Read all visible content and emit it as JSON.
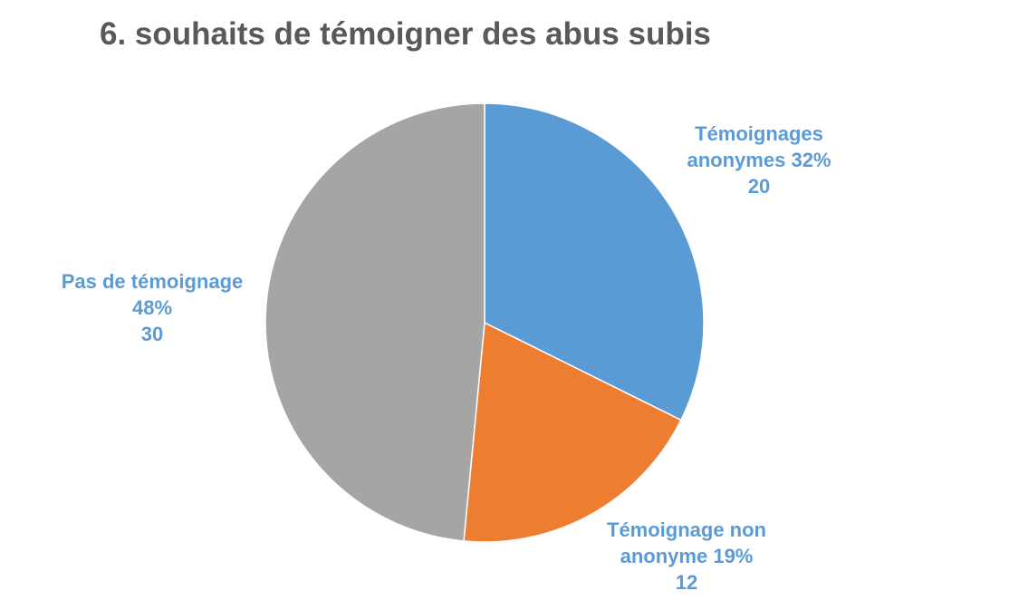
{
  "chart_data": {
    "type": "pie",
    "title": "6. souhaits de témoigner des abus subis",
    "categories": [
      "Témoignages anonymes",
      "Témoignage non anonyme",
      "Pas de témoignage"
    ],
    "values": [
      32,
      19,
      48
    ],
    "value_labels": [
      "32%",
      "19%",
      "48%"
    ],
    "counts": [
      20,
      12,
      30
    ],
    "colors": [
      "#5b9bd5",
      "#ed7d31",
      "#a5a5a5"
    ],
    "label_color": "#5b9bd5"
  }
}
